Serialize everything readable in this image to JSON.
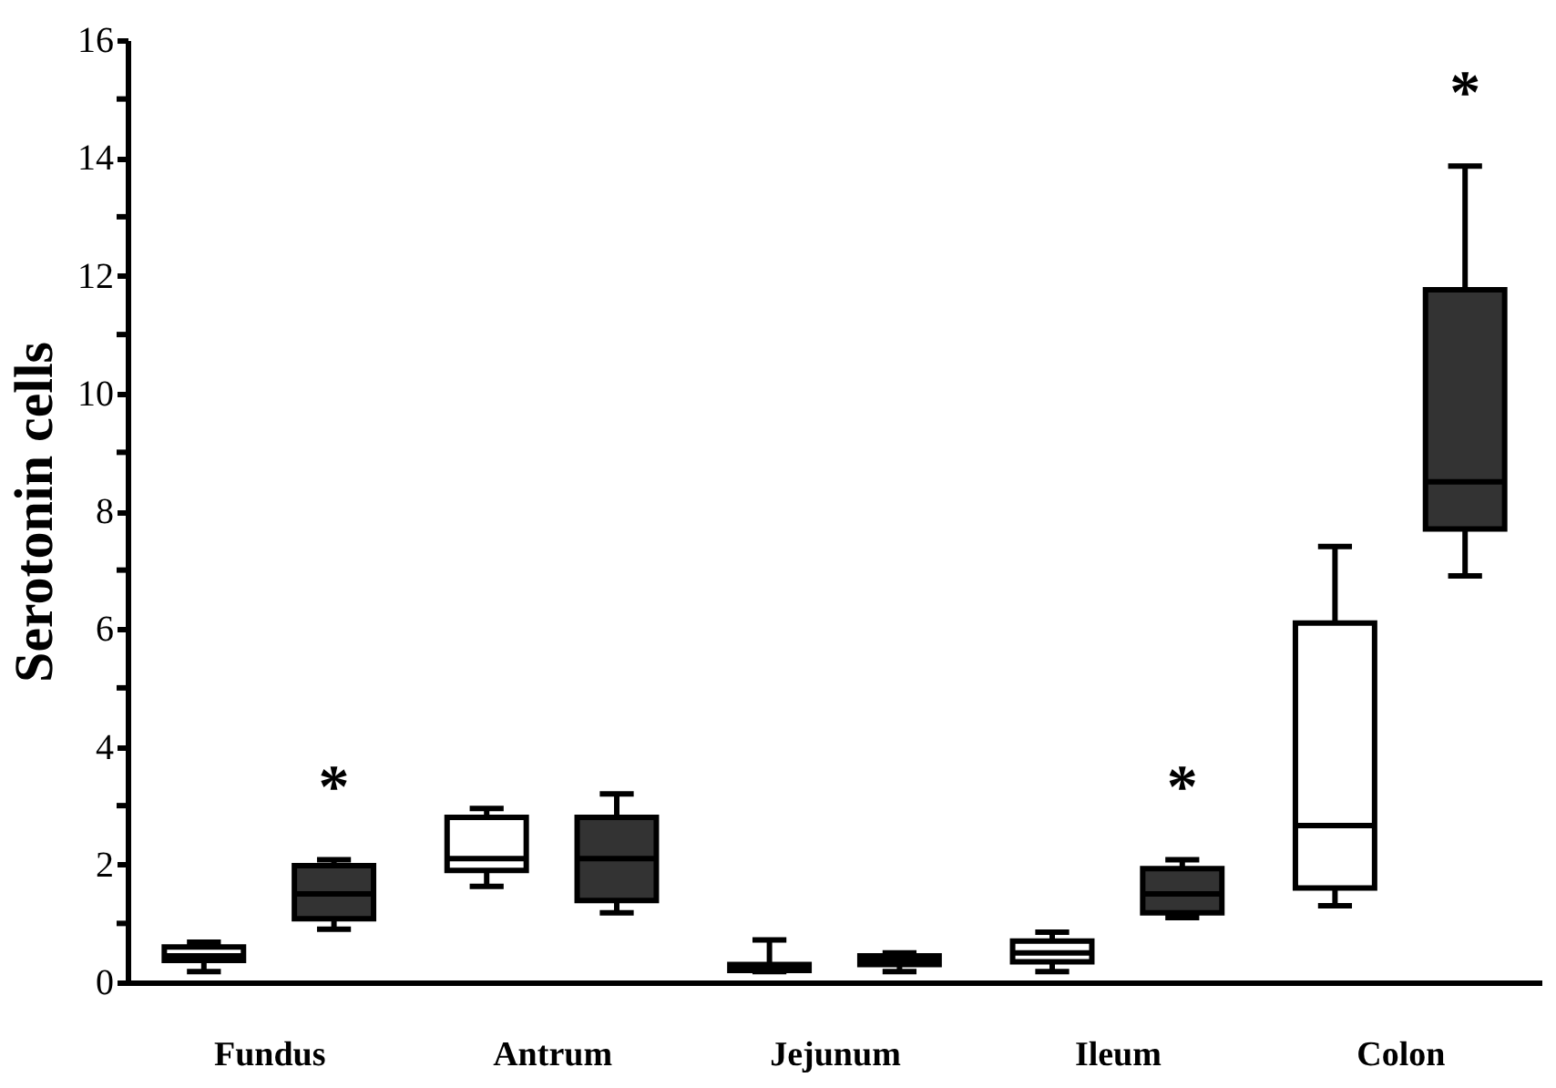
{
  "chart_data": {
    "type": "box",
    "ylabel": "Serotonin cells",
    "categories": [
      "Fundus",
      "Antrum",
      "Jejunum",
      "Ileum",
      "Colon"
    ],
    "ylim": [
      0,
      16
    ],
    "yticks": [
      0,
      {
        "value": 1,
        "label": null
      },
      2,
      {
        "value": 3,
        "label": null
      },
      4,
      {
        "value": 5,
        "label": null
      },
      6,
      {
        "value": 7,
        "label": null
      },
      8,
      {
        "value": 9,
        "label": null
      },
      10,
      {
        "value": 11,
        "label": null
      },
      12,
      {
        "value": 13,
        "label": null
      },
      14,
      {
        "value": 15,
        "label": null
      },
      16
    ],
    "grid": false,
    "series": [
      {
        "color": "#ffffff",
        "boxes": [
          {
            "low": 0.18,
            "q1": 0.37,
            "median": 0.45,
            "q3": 0.6,
            "high": 0.68
          },
          {
            "low": 1.63,
            "q1": 1.9,
            "median": 2.1,
            "q3": 2.8,
            "high": 2.95
          },
          {
            "low": 0.18,
            "q1": 0.2,
            "median": 0.25,
            "q3": 0.3,
            "high": 0.72
          },
          {
            "low": 0.18,
            "q1": 0.35,
            "median": 0.5,
            "q3": 0.7,
            "high": 0.85
          },
          {
            "low": 1.3,
            "q1": 1.6,
            "median": 2.66,
            "q3": 6.1,
            "high": 7.4
          }
        ]
      },
      {
        "color": "#333333",
        "boxes": [
          {
            "low": 0.9,
            "q1": 1.08,
            "median": 1.5,
            "q3": 1.98,
            "high": 2.08
          },
          {
            "low": 1.18,
            "q1": 1.39,
            "median": 2.1,
            "q3": 2.8,
            "high": 3.2
          },
          {
            "low": 0.18,
            "q1": 0.3,
            "median": 0.38,
            "q3": 0.45,
            "high": 0.5
          },
          {
            "low": 1.1,
            "q1": 1.18,
            "median": 1.5,
            "q3": 1.93,
            "high": 2.08
          },
          {
            "low": 6.9,
            "q1": 7.7,
            "median": 8.5,
            "q3": 11.76,
            "high": 13.86
          }
        ]
      }
    ],
    "annotations": [
      "*",
      "*",
      "*"
    ]
  }
}
